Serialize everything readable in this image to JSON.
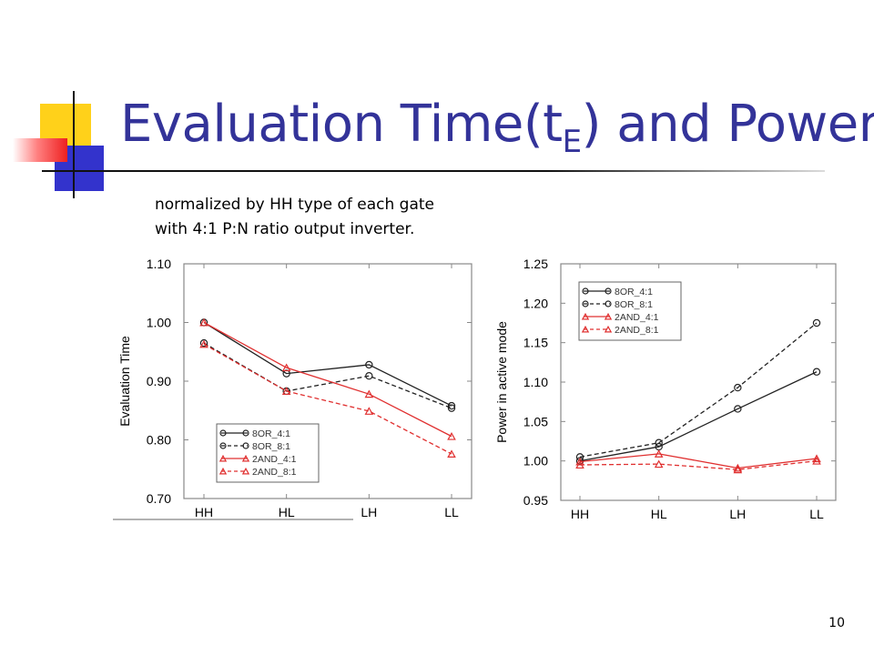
{
  "slide": {
    "title_main": "Evaluation Time(t",
    "title_sub": "E",
    "title_tail": ") and Power",
    "subtitle_lines": [
      "normalized by HH type of each gate",
      "with 4:1 P:N ratio output inverter."
    ],
    "page_number": "10",
    "colors": {
      "title": "#333399",
      "deco_yellow": "#ffd11a",
      "deco_blue": "#3333cc",
      "deco_red": "#ee2020"
    }
  },
  "chart_data": [
    {
      "type": "line",
      "xlabel": "",
      "ylabel": "Evaluation Time",
      "categories": [
        "HH",
        "HL",
        "LH",
        "LL"
      ],
      "ylim": [
        0.7,
        1.1
      ],
      "yticks": [
        "0.70",
        "0.80",
        "0.90",
        "1.00",
        "1.10"
      ],
      "grid": false,
      "legend": "bottom-left",
      "series": [
        {
          "name": "8OR_4:1",
          "values": [
            1.0,
            0.913,
            0.928,
            0.858
          ],
          "color": "#222222",
          "dash": false,
          "marker": "circle"
        },
        {
          "name": "8OR_8:1",
          "values": [
            0.965,
            0.883,
            0.909,
            0.854
          ],
          "color": "#222222",
          "dash": true,
          "marker": "circle"
        },
        {
          "name": "2AND_4:1",
          "values": [
            1.0,
            0.923,
            0.878,
            0.806
          ],
          "color": "#e03030",
          "dash": false,
          "marker": "triangle"
        },
        {
          "name": "2AND_8:1",
          "values": [
            0.963,
            0.883,
            0.849,
            0.776
          ],
          "color": "#e03030",
          "dash": true,
          "marker": "triangle"
        }
      ]
    },
    {
      "type": "line",
      "xlabel": "",
      "ylabel": "Power in active mode",
      "categories": [
        "HH",
        "HL",
        "LH",
        "LL"
      ],
      "ylim": [
        0.95,
        1.25
      ],
      "yticks": [
        "0.95",
        "1.00",
        "1.05",
        "1.10",
        "1.15",
        "1.20",
        "1.25"
      ],
      "grid": false,
      "legend": "top-left",
      "series": [
        {
          "name": "8OR_4:1",
          "values": [
            1.0,
            1.018,
            1.066,
            1.113
          ],
          "color": "#222222",
          "dash": false,
          "marker": "circle"
        },
        {
          "name": "8OR_8:1",
          "values": [
            1.005,
            1.023,
            1.093,
            1.175
          ],
          "color": "#222222",
          "dash": true,
          "marker": "circle"
        },
        {
          "name": "2AND_4:1",
          "values": [
            0.999,
            1.009,
            0.991,
            1.003
          ],
          "color": "#e03030",
          "dash": false,
          "marker": "triangle"
        },
        {
          "name": "2AND_8:1",
          "values": [
            0.995,
            0.996,
            0.989,
            1.0
          ],
          "color": "#e03030",
          "dash": true,
          "marker": "triangle"
        }
      ]
    }
  ]
}
